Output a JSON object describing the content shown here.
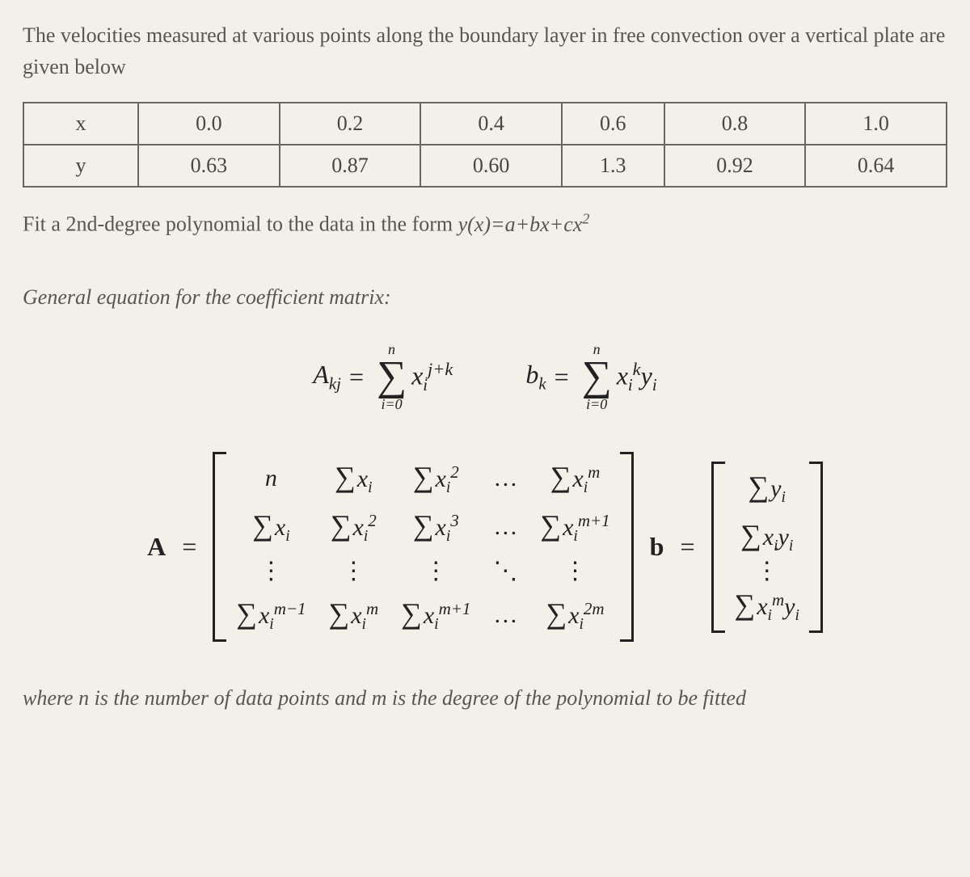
{
  "intro": "The velocities measured at various points along the boundary layer in free convection over a vertical plate are given below",
  "table": {
    "rows": [
      {
        "label": "x",
        "values": [
          "0.0",
          "0.2",
          "0.4",
          "0.6",
          "0.8",
          "1.0"
        ]
      },
      {
        "label": "y",
        "values": [
          "0.63",
          "0.87",
          "0.60",
          "1.3",
          "0.92",
          "0.64"
        ]
      }
    ],
    "border_color": "#6a6560",
    "cell_fontsize": 26
  },
  "fit_text_prefix": "Fit a 2nd-degree polynomial to the data in the form ",
  "fit_equation": "y(x)=a+bx+cx",
  "fit_exponent": "2",
  "section_heading": "General equation for the coefficient matrix:",
  "eq_A": {
    "lhs": "A",
    "sub": "kj",
    "sum_top": "n",
    "sum_bot": "i=0",
    "var": "x",
    "varsub": "i",
    "exp": "j+k"
  },
  "eq_b": {
    "lhs": "b",
    "sub": "k",
    "sum_top": "n",
    "sum_bot": "i=0",
    "var1": "x",
    "var1sub": "i",
    "exp": "k",
    "var2": "y",
    "var2sub": "i"
  },
  "matrixA_label": "A",
  "matrixB_label": "b",
  "equals": "=",
  "matrixA": {
    "rows": [
      [
        "n",
        "Σxᵢ",
        "Σxᵢ²",
        "…",
        "Σxᵢᵐ"
      ],
      [
        "Σxᵢ",
        "Σxᵢ²",
        "Σxᵢ³",
        "…",
        "Σxᵢᵐ⁺¹"
      ],
      [
        "⋮",
        "⋮",
        "⋮",
        "⋱",
        "⋮"
      ],
      [
        "Σxᵢᵐ⁻¹",
        "Σxᵢᵐ",
        "Σxᵢᵐ⁺¹",
        "…",
        "Σxᵢ²ᵐ"
      ]
    ]
  },
  "matrixB": {
    "rows": [
      "Σyᵢ",
      "Σxᵢyᵢ",
      "⋮",
      "Σxᵢᵐyᵢ"
    ]
  },
  "footnote": "where n is the number of data points and m is the degree of the polynomial to be fitted",
  "colors": {
    "background": "#f3efe9",
    "body_text": "#5a5550",
    "math_text": "#222222"
  }
}
